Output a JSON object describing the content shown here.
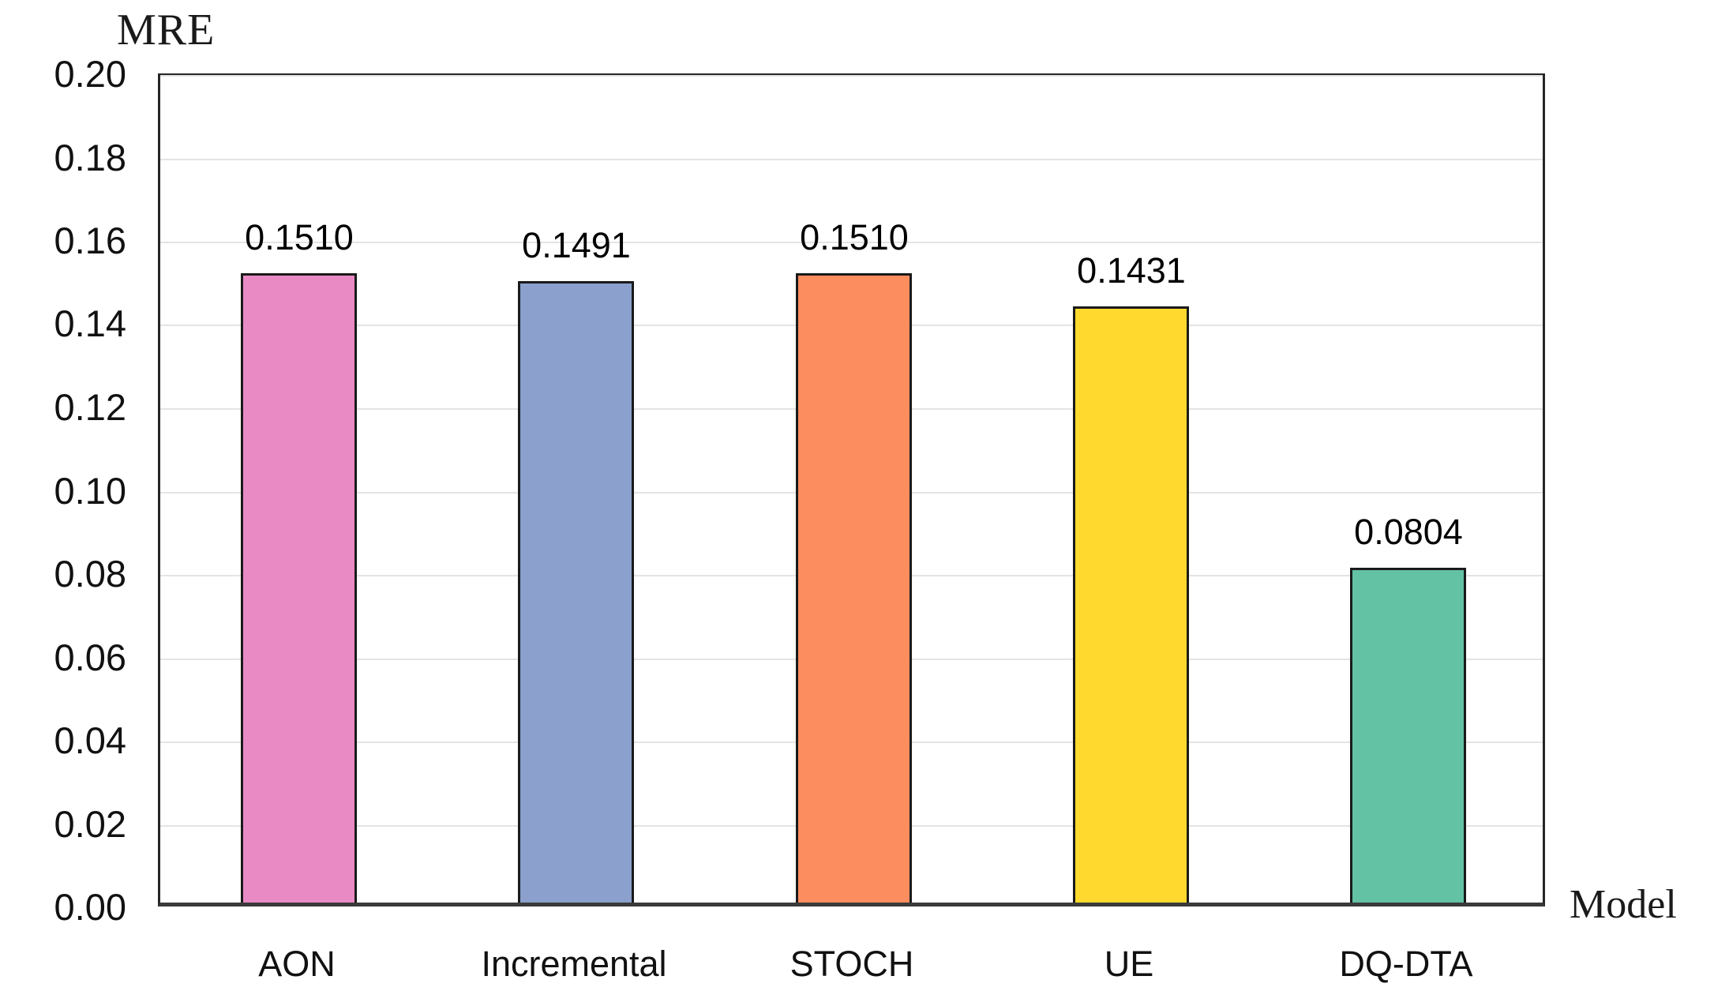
{
  "chart_data": {
    "type": "bar",
    "title": "MRE",
    "xlabel": "Model",
    "ylabel": "MRE",
    "categories": [
      "AON",
      "Incremental",
      "STOCH",
      "UE",
      "DQ-DTA"
    ],
    "values": [
      0.151,
      0.1491,
      0.151,
      0.1431,
      0.0804
    ],
    "value_labels": [
      "0.1510",
      "0.1491",
      "0.1510",
      "0.1431",
      "0.0804"
    ],
    "bar_colors": [
      "#e98ac5",
      "#8ba0cc",
      "#fb8d5e",
      "#ffd92e",
      "#63c1a4"
    ],
    "bar_border_color": "#1a1a1a",
    "ylim": [
      0.0,
      0.2
    ],
    "ytick_step": 0.02,
    "ytick_labels": [
      "0.00",
      "0.02",
      "0.04",
      "0.06",
      "0.08",
      "0.10",
      "0.12",
      "0.14",
      "0.16",
      "0.18",
      "0.20"
    ],
    "grid": "horizontal",
    "gridline_color": "#e4e4e4",
    "plot_border_color": "#262626",
    "legend_position": "none",
    "label_color": "#000000"
  }
}
